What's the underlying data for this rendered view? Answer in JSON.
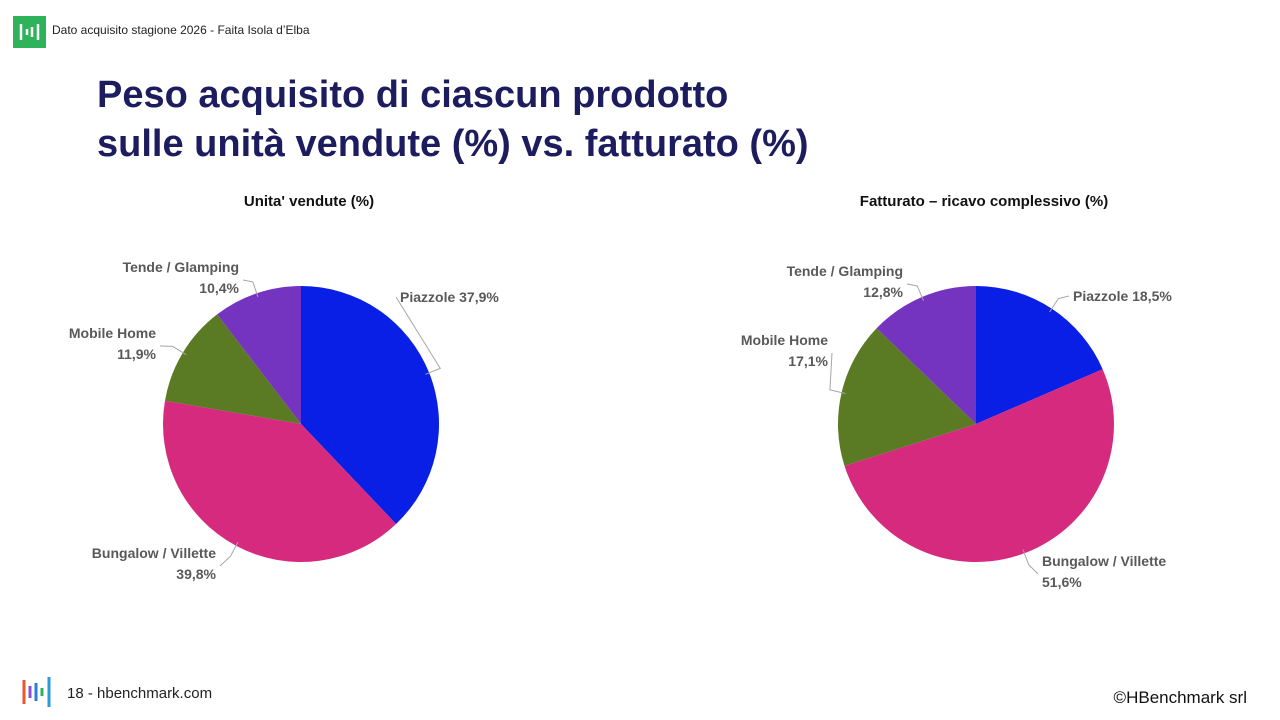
{
  "header": {
    "text": "Dato acquisito stagione 2026 - Faita Isola d’Elba"
  },
  "title": [
    "Peso acquisito di ciascun prodotto",
    "sulle unità vendute (%) vs. fatturato (%)"
  ],
  "footer": {
    "left": "18 - hbenchmark.com",
    "right": "©HBenchmark srl"
  },
  "chart_data": [
    {
      "type": "pie",
      "title": "Unita' vendute (%)",
      "categories": [
        "Piazzole",
        "Bungalow / Villette",
        "Mobile Home",
        "Tende / Glamping"
      ],
      "values": [
        37.9,
        39.8,
        11.9,
        10.4
      ],
      "value_labels": [
        "37,9%",
        "39,8%",
        "11,9%",
        "10,4%"
      ],
      "colors": [
        "#0a1fe6",
        "#d62a7e",
        "#5a7a23",
        "#7434c0"
      ]
    },
    {
      "type": "pie",
      "title": "Fatturato – ricavo complessivo (%)",
      "categories": [
        "Piazzole",
        "Bungalow / Villette",
        "Mobile Home",
        "Tende / Glamping"
      ],
      "values": [
        18.5,
        51.6,
        17.1,
        12.8
      ],
      "value_labels": [
        "18,5%",
        "51,6%",
        "17,1%",
        "12,8%"
      ],
      "colors": [
        "#0a1fe6",
        "#d62a7e",
        "#5a7a23",
        "#7434c0"
      ]
    }
  ]
}
